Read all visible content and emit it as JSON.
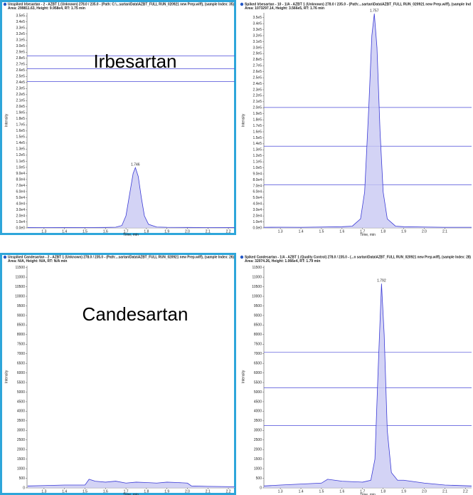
{
  "chart_data": [
    {
      "type": "line",
      "title": "Unspiked Irbesartan - 2 - AZBT 1 (Unknown) 278.0 / 235.0 - (Path: C:\\...sartan\\Data\\AZBT_FULL RUN_020921 new Prep.wiff), (sample Index: 35)",
      "subtitle": "Area: 299811.63, Height: 9.958e4, RT: 1.75 min",
      "label": "Irbesartan",
      "x_label": "Time, min",
      "y_label": "Intensity",
      "annotations": [
        {
          "text": "1.746",
          "x": 1.746,
          "y": 99580
        }
      ],
      "xlim": [
        1.217,
        2.231
      ],
      "ylim": [
        0,
        355000
      ],
      "xticks": [
        1.3,
        1.4,
        1.5,
        1.6,
        1.7,
        1.8,
        1.9,
        {
          "value": 2,
          "label": "2.0"
        },
        2.1,
        2.2
      ],
      "yticks": [
        {
          "value": 0,
          "label": "0.0e0"
        },
        {
          "value": 10000,
          "label": "1.0e4"
        },
        {
          "value": 20000,
          "label": "2.0e4"
        },
        {
          "value": 30000,
          "label": "3.0e4"
        },
        {
          "value": 40000,
          "label": "4.0e4"
        },
        {
          "value": 50000,
          "label": "5.0e4"
        },
        {
          "value": 60000,
          "label": "6.0e4"
        },
        {
          "value": 70000,
          "label": "7.0e4"
        },
        {
          "value": 80000,
          "label": "8.0e4"
        },
        {
          "value": 90000,
          "label": "9.0e4"
        },
        {
          "value": 100000,
          "label": "1.0e5"
        },
        {
          "value": 110000,
          "label": "1.1e5"
        },
        {
          "value": 120000,
          "label": "1.2e5"
        },
        {
          "value": 130000,
          "label": "1.3e5"
        },
        {
          "value": 140000,
          "label": "1.4e5"
        },
        {
          "value": 150000,
          "label": "1.5e5"
        },
        {
          "value": 160000,
          "label": "1.6e5"
        },
        {
          "value": 170000,
          "label": "1.7e5"
        },
        {
          "value": 180000,
          "label": "1.8e5"
        },
        {
          "value": 190000,
          "label": "1.9e5"
        },
        {
          "value": 200000,
          "label": "2.0e5"
        },
        {
          "value": 210000,
          "label": "2.1e5"
        },
        {
          "value": 220000,
          "label": "2.2e5"
        },
        {
          "value": 230000,
          "label": "2.3e5"
        },
        {
          "value": 240000,
          "label": "2.4e5"
        },
        {
          "value": 250000,
          "label": "2.5e5"
        },
        {
          "value": 260000,
          "label": "2.6e5"
        },
        {
          "value": 270000,
          "label": "2.7e5"
        },
        {
          "value": 280000,
          "label": "2.8e5"
        },
        {
          "value": 290000,
          "label": "2.9e5"
        },
        {
          "value": 300000,
          "label": "3.0e5"
        },
        {
          "value": 310000,
          "label": "3.1e5"
        },
        {
          "value": 320000,
          "label": "3.2e5"
        },
        {
          "value": 330000,
          "label": "3.3e5"
        },
        {
          "value": 340000,
          "label": "3.4e5"
        },
        {
          "value": 350000,
          "label": "3.5e5"
        }
      ],
      "color": "#3b3bd6",
      "fill": "#c8c8f2",
      "x": [
        1.22,
        1.3,
        1.4,
        1.5,
        1.6,
        1.65,
        1.68,
        1.7,
        1.72,
        1.735,
        1.746,
        1.76,
        1.775,
        1.79,
        1.81,
        1.85,
        1.9,
        2.0,
        2.1,
        2.23
      ],
      "values": [
        500,
        600,
        500,
        700,
        800,
        1200,
        4000,
        20000,
        60000,
        90000,
        99580,
        85000,
        50000,
        20000,
        6000,
        1500,
        1000,
        800,
        600,
        500
      ]
    },
    {
      "type": "line",
      "title": "Spiked Irbesartan - 10 - 1/A - AZBT 1 (Unknown) 278.0 / 235.0 - (Path:...sartan\\Data\\AZBT_FULL RUN_020921 new Prep.wiff), (sample Ind",
      "subtitle": "Area: 1073297.14, Height: 3.566e5, RT: 1.76 min",
      "x_label": "Time, min",
      "y_label": "Intensity",
      "annotations": [
        {
          "text": "1.757",
          "x": 1.757,
          "y": 356600
        }
      ],
      "xlim": [
        1.22,
        2.23
      ],
      "ylim": [
        0,
        358000
      ],
      "xticks": [
        1.3,
        1.4,
        1.5,
        1.6,
        1.7,
        1.8,
        1.9,
        {
          "value": 2,
          "label": "2.0"
        },
        2.1
      ],
      "yticks": [
        {
          "value": 0,
          "label": "0.0e0"
        },
        {
          "value": 10000,
          "label": "1.0e4"
        },
        {
          "value": 20000,
          "label": "2.0e4"
        },
        {
          "value": 30000,
          "label": "3.0e4"
        },
        {
          "value": 40000,
          "label": "4.0e4"
        },
        {
          "value": 50000,
          "label": "5.0e4"
        },
        {
          "value": 60000,
          "label": "6.0e4"
        },
        {
          "value": 70000,
          "label": "7.0e4"
        },
        {
          "value": 80000,
          "label": "8.0e4"
        },
        {
          "value": 90000,
          "label": "9.0e4"
        },
        {
          "value": 100000,
          "label": "1.0e5"
        },
        {
          "value": 110000,
          "label": "1.1e5"
        },
        {
          "value": 120000,
          "label": "1.2e5"
        },
        {
          "value": 130000,
          "label": "1.3e5"
        },
        {
          "value": 140000,
          "label": "1.4e5"
        },
        {
          "value": 150000,
          "label": "1.5e5"
        },
        {
          "value": 160000,
          "label": "1.6e5"
        },
        {
          "value": 170000,
          "label": "1.7e5"
        },
        {
          "value": 180000,
          "label": "1.8e5"
        },
        {
          "value": 190000,
          "label": "1.9e5"
        },
        {
          "value": 200000,
          "label": "2.0e5"
        },
        {
          "value": 210000,
          "label": "2.1e5"
        },
        {
          "value": 220000,
          "label": "2.2e5"
        },
        {
          "value": 230000,
          "label": "2.3e5"
        },
        {
          "value": 240000,
          "label": "2.4e5"
        },
        {
          "value": 250000,
          "label": "2.5e5"
        },
        {
          "value": 260000,
          "label": "2.6e5"
        },
        {
          "value": 270000,
          "label": "2.7e5"
        },
        {
          "value": 280000,
          "label": "2.8e5"
        },
        {
          "value": 290000,
          "label": "2.9e5"
        },
        {
          "value": 300000,
          "label": "3.0e5"
        },
        {
          "value": 310000,
          "label": "3.1e5"
        },
        {
          "value": 320000,
          "label": "3.2e5"
        },
        {
          "value": 330000,
          "label": "3.3e5"
        },
        {
          "value": 340000,
          "label": "3.4e5"
        },
        {
          "value": 350000,
          "label": "3.5e5"
        }
      ],
      "color": "#3b3bd6",
      "fill": "#c8c8f2",
      "x": [
        1.22,
        1.3,
        1.4,
        1.5,
        1.6,
        1.65,
        1.69,
        1.71,
        1.73,
        1.745,
        1.757,
        1.77,
        1.785,
        1.8,
        1.82,
        1.86,
        1.9,
        2.0,
        2.1,
        2.23
      ],
      "values": [
        1000,
        1200,
        1000,
        1500,
        2000,
        3000,
        15000,
        60000,
        200000,
        320000,
        356600,
        300000,
        160000,
        60000,
        15000,
        3000,
        2000,
        1500,
        1000,
        1000
      ]
    },
    {
      "type": "line",
      "title": "Unspiked Candesartan - 2 - AZBT 1 (Unknown) 278.0 / 235.0 - (Path:...sartan\\Data\\AZBT_FULL RUN_020921 new Prep.wiff), (sample Index: 26)",
      "subtitle": "Area: N/A, Height: N/A, RT: N/A min",
      "label": "Candesartan",
      "x_label": "Time, min",
      "y_label": "Intensity",
      "xlim": [
        1.217,
        2.231
      ],
      "ylim": [
        0,
        11600
      ],
      "xticks": [
        1.3,
        1.4,
        1.5,
        1.6,
        1.7,
        1.8,
        1.9,
        {
          "value": 2,
          "label": "2.0"
        },
        2.1,
        2.2
      ],
      "yticks": [
        0,
        500,
        1000,
        1500,
        2000,
        2500,
        3000,
        3500,
        4000,
        4500,
        5000,
        5500,
        6000,
        6500,
        7000,
        7500,
        8000,
        8500,
        9000,
        9500,
        10000,
        10500,
        11000,
        11500
      ],
      "color": "#3b3bd6",
      "fill": "#c8c8f2",
      "x": [
        1.22,
        1.3,
        1.4,
        1.5,
        1.52,
        1.55,
        1.6,
        1.65,
        1.7,
        1.75,
        1.8,
        1.85,
        1.9,
        1.95,
        2.0,
        2.02,
        2.1,
        2.23
      ],
      "values": [
        100,
        120,
        150,
        150,
        450,
        350,
        300,
        350,
        250,
        300,
        280,
        250,
        300,
        280,
        250,
        100,
        80,
        60
      ]
    },
    {
      "type": "line",
      "title": "Spiked Candesartan - 1/A - AZBT 1 (Quality Control) 278.0 / 235.0 - (...n sartan\\Data\\AZBT_FULL RUN_020921 new Prep.wiff), (sample Index: 28)",
      "subtitle": "Area: 32074.26, Height: 1.066e4, RT: 1.79 min",
      "x_label": "Time, min",
      "y_label": "Intensity",
      "annotations": [
        {
          "text": "1.792",
          "x": 1.792,
          "y": 10660
        }
      ],
      "xlim": [
        1.22,
        2.23
      ],
      "ylim": [
        0,
        11600
      ],
      "xticks": [
        1.3,
        1.4,
        1.5,
        1.6,
        1.7,
        1.8,
        1.9,
        {
          "value": 2,
          "label": "2.0"
        },
        2.1,
        2.2
      ],
      "yticks": [
        0,
        500,
        1000,
        1500,
        2000,
        2500,
        3000,
        3500,
        4000,
        4500,
        5000,
        5500,
        6000,
        6500,
        7000,
        7500,
        8000,
        8500,
        9000,
        9500,
        10000,
        10500,
        11000,
        11500
      ],
      "color": "#3b3bd6",
      "fill": "#c8c8f2",
      "x": [
        1.22,
        1.3,
        1.4,
        1.5,
        1.53,
        1.6,
        1.7,
        1.74,
        1.76,
        1.775,
        1.792,
        1.805,
        1.82,
        1.84,
        1.87,
        1.9,
        2.0,
        2.1,
        2.23
      ],
      "values": [
        100,
        150,
        200,
        250,
        450,
        350,
        300,
        400,
        1500,
        6000,
        10660,
        8000,
        3000,
        800,
        400,
        400,
        250,
        150,
        100
      ]
    }
  ]
}
